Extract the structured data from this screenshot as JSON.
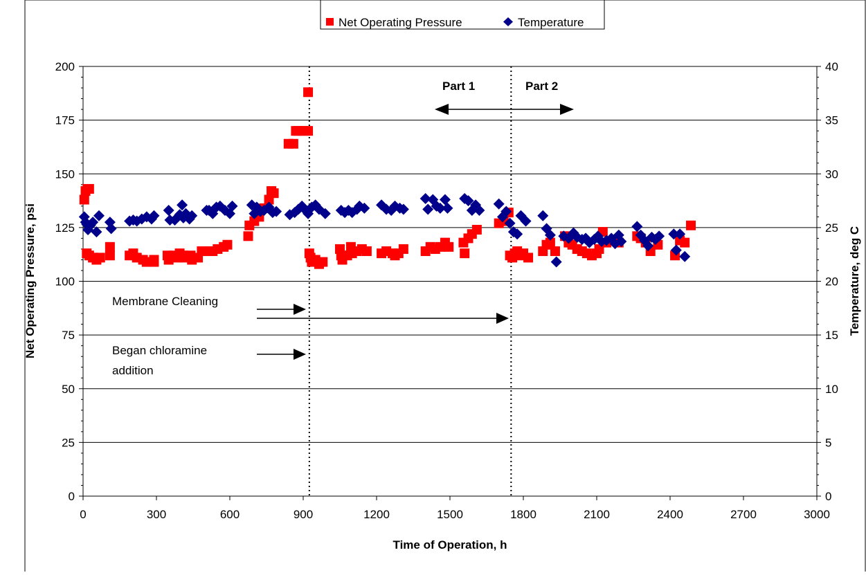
{
  "chart_data": {
    "type": "scatter",
    "xlabel": "Time of Operation, h",
    "ylabel": "Net Operating Pressure, psi",
    "y2label": "Temperature, deg C",
    "xlim": [
      0,
      3000
    ],
    "ylim": [
      0,
      200
    ],
    "y2lim": [
      0,
      40
    ],
    "x_ticks": [
      0,
      300,
      600,
      900,
      1200,
      1500,
      1800,
      2100,
      2400,
      2700,
      3000
    ],
    "y_ticks": [
      0,
      25,
      50,
      75,
      100,
      125,
      150,
      175,
      200
    ],
    "y2_ticks": [
      0,
      5,
      10,
      15,
      20,
      25,
      30,
      35,
      40
    ],
    "grid": "horizontal",
    "legend_position": "top-center",
    "vertical_markers": [
      925,
      1750
    ],
    "annotations": {
      "part1": "Part 1",
      "part2": "Part 2",
      "membrane_cleaning": "Membrane Cleaning",
      "chloramine_line1": "Began chloramine",
      "chloramine_line2": "addition"
    },
    "series": [
      {
        "name": "Net Operating Pressure",
        "axis": "left",
        "color": "#ff0000",
        "marker": "square",
        "points": [
          [
            5,
            138
          ],
          [
            10,
            142
          ],
          [
            18,
            143
          ],
          [
            25,
            143
          ],
          [
            15,
            113
          ],
          [
            25,
            112
          ],
          [
            40,
            111
          ],
          [
            55,
            110
          ],
          [
            70,
            111
          ],
          [
            110,
            116
          ],
          [
            110,
            112
          ],
          [
            190,
            112
          ],
          [
            205,
            113
          ],
          [
            220,
            111
          ],
          [
            245,
            110
          ],
          [
            260,
            109
          ],
          [
            290,
            109
          ],
          [
            290,
            110
          ],
          [
            345,
            112
          ],
          [
            350,
            110
          ],
          [
            370,
            112
          ],
          [
            385,
            111
          ],
          [
            395,
            113
          ],
          [
            410,
            112
          ],
          [
            420,
            111
          ],
          [
            440,
            112
          ],
          [
            445,
            110
          ],
          [
            470,
            111
          ],
          [
            485,
            114
          ],
          [
            510,
            114
          ],
          [
            530,
            114
          ],
          [
            550,
            115
          ],
          [
            575,
            116
          ],
          [
            590,
            117
          ],
          [
            675,
            121
          ],
          [
            680,
            126
          ],
          [
            700,
            128
          ],
          [
            720,
            130
          ],
          [
            740,
            134
          ],
          [
            760,
            138
          ],
          [
            770,
            142
          ],
          [
            780,
            141
          ],
          [
            840,
            164
          ],
          [
            860,
            164
          ],
          [
            870,
            170
          ],
          [
            880,
            170
          ],
          [
            900,
            170
          ],
          [
            920,
            170
          ],
          [
            920,
            188
          ],
          [
            925,
            113
          ],
          [
            930,
            111
          ],
          [
            935,
            109
          ],
          [
            950,
            110
          ],
          [
            965,
            108
          ],
          [
            980,
            109
          ],
          [
            1050,
            115
          ],
          [
            1055,
            112
          ],
          [
            1060,
            110
          ],
          [
            1080,
            112
          ],
          [
            1095,
            116
          ],
          [
            1100,
            113
          ],
          [
            1120,
            114
          ],
          [
            1140,
            115
          ],
          [
            1160,
            114
          ],
          [
            1220,
            113
          ],
          [
            1240,
            114
          ],
          [
            1265,
            113
          ],
          [
            1275,
            112
          ],
          [
            1290,
            113
          ],
          [
            1310,
            115
          ],
          [
            1400,
            114
          ],
          [
            1420,
            116
          ],
          [
            1440,
            115
          ],
          [
            1460,
            116
          ],
          [
            1480,
            118
          ],
          [
            1495,
            116
          ],
          [
            1555,
            118
          ],
          [
            1560,
            113
          ],
          [
            1575,
            120
          ],
          [
            1590,
            122
          ],
          [
            1610,
            124
          ],
          [
            1700,
            127
          ],
          [
            1720,
            128
          ],
          [
            1740,
            132
          ],
          [
            1745,
            112
          ],
          [
            1755,
            111
          ],
          [
            1765,
            113
          ],
          [
            1775,
            114
          ],
          [
            1790,
            112
          ],
          [
            1800,
            113
          ],
          [
            1820,
            111
          ],
          [
            1880,
            114
          ],
          [
            1895,
            117
          ],
          [
            1910,
            118
          ],
          [
            1930,
            114
          ],
          [
            1970,
            121
          ],
          [
            1985,
            118
          ],
          [
            2000,
            117
          ],
          [
            2020,
            115
          ],
          [
            2040,
            114
          ],
          [
            2060,
            113
          ],
          [
            2080,
            112
          ],
          [
            2100,
            113
          ],
          [
            2110,
            115
          ],
          [
            2125,
            123
          ],
          [
            2140,
            118
          ],
          [
            2170,
            119
          ],
          [
            2190,
            118
          ],
          [
            2265,
            121
          ],
          [
            2280,
            120
          ],
          [
            2300,
            118
          ],
          [
            2320,
            114
          ],
          [
            2350,
            117
          ],
          [
            2420,
            112
          ],
          [
            2440,
            119
          ],
          [
            2460,
            118
          ],
          [
            2485,
            126
          ]
        ]
      },
      {
        "name": "Temperature",
        "axis": "right",
        "color": "#00008b",
        "marker": "diamond",
        "points": [
          [
            5,
            26
          ],
          [
            10,
            25.5
          ],
          [
            15,
            25.3
          ],
          [
            20,
            24.8
          ],
          [
            30,
            25.2
          ],
          [
            40,
            25.5
          ],
          [
            55,
            24.6
          ],
          [
            65,
            26.1
          ],
          [
            110,
            25.5
          ],
          [
            115,
            24.9
          ],
          [
            190,
            25.6
          ],
          [
            205,
            25.7
          ],
          [
            220,
            25.6
          ],
          [
            240,
            25.8
          ],
          [
            260,
            26
          ],
          [
            280,
            25.8
          ],
          [
            290,
            26.1
          ],
          [
            350,
            26.6
          ],
          [
            355,
            25.7
          ],
          [
            375,
            25.7
          ],
          [
            395,
            26.2
          ],
          [
            405,
            27.1
          ],
          [
            410,
            25.9
          ],
          [
            420,
            26.3
          ],
          [
            435,
            25.8
          ],
          [
            445,
            26.1
          ],
          [
            505,
            26.6
          ],
          [
            515,
            26.6
          ],
          [
            530,
            26.3
          ],
          [
            545,
            26.9
          ],
          [
            560,
            27
          ],
          [
            580,
            26.6
          ],
          [
            600,
            26.3
          ],
          [
            610,
            27
          ],
          [
            690,
            27.1
          ],
          [
            700,
            26.3
          ],
          [
            710,
            26.9
          ],
          [
            725,
            26.5
          ],
          [
            740,
            26.6
          ],
          [
            760,
            26.9
          ],
          [
            775,
            26.4
          ],
          [
            790,
            26.5
          ],
          [
            845,
            26.2
          ],
          [
            865,
            26.4
          ],
          [
            880,
            26.7
          ],
          [
            895,
            27
          ],
          [
            910,
            26.6
          ],
          [
            920,
            26.3
          ],
          [
            935,
            26.9
          ],
          [
            950,
            27.1
          ],
          [
            965,
            26.7
          ],
          [
            990,
            26.3
          ],
          [
            1055,
            26.6
          ],
          [
            1070,
            26.4
          ],
          [
            1085,
            26.6
          ],
          [
            1100,
            26.4
          ],
          [
            1120,
            26.7
          ],
          [
            1130,
            27
          ],
          [
            1150,
            26.8
          ],
          [
            1220,
            27.1
          ],
          [
            1240,
            26.7
          ],
          [
            1260,
            26.6
          ],
          [
            1275,
            27
          ],
          [
            1295,
            26.8
          ],
          [
            1310,
            26.7
          ],
          [
            1400,
            27.7
          ],
          [
            1410,
            26.7
          ],
          [
            1430,
            27.6
          ],
          [
            1445,
            27
          ],
          [
            1460,
            26.8
          ],
          [
            1480,
            27.6
          ],
          [
            1490,
            26.8
          ],
          [
            1560,
            27.7
          ],
          [
            1575,
            27.5
          ],
          [
            1590,
            26.6
          ],
          [
            1605,
            27.1
          ],
          [
            1620,
            26.6
          ],
          [
            1700,
            27.2
          ],
          [
            1715,
            26
          ],
          [
            1730,
            26.5
          ],
          [
            1745,
            25.4
          ],
          [
            1760,
            24.6
          ],
          [
            1775,
            24.4
          ],
          [
            1790,
            26.1
          ],
          [
            1810,
            25.6
          ],
          [
            1880,
            26.1
          ],
          [
            1895,
            24.9
          ],
          [
            1910,
            24.3
          ],
          [
            1935,
            21.8
          ],
          [
            1965,
            24.2
          ],
          [
            1985,
            24
          ],
          [
            2005,
            24.5
          ],
          [
            2020,
            24.1
          ],
          [
            2040,
            23.9
          ],
          [
            2055,
            24
          ],
          [
            2070,
            23.6
          ],
          [
            2090,
            23.9
          ],
          [
            2105,
            24.2
          ],
          [
            2120,
            23.7
          ],
          [
            2140,
            23.8
          ],
          [
            2160,
            24
          ],
          [
            2175,
            23.5
          ],
          [
            2190,
            24.3
          ],
          [
            2200,
            23.7
          ],
          [
            2265,
            25.1
          ],
          [
            2280,
            24.3
          ],
          [
            2295,
            23.8
          ],
          [
            2310,
            23.3
          ],
          [
            2325,
            24.1
          ],
          [
            2340,
            23.9
          ],
          [
            2355,
            24.2
          ],
          [
            2415,
            24.4
          ],
          [
            2425,
            22.9
          ],
          [
            2440,
            24.4
          ],
          [
            2460,
            22.3
          ]
        ]
      }
    ]
  }
}
